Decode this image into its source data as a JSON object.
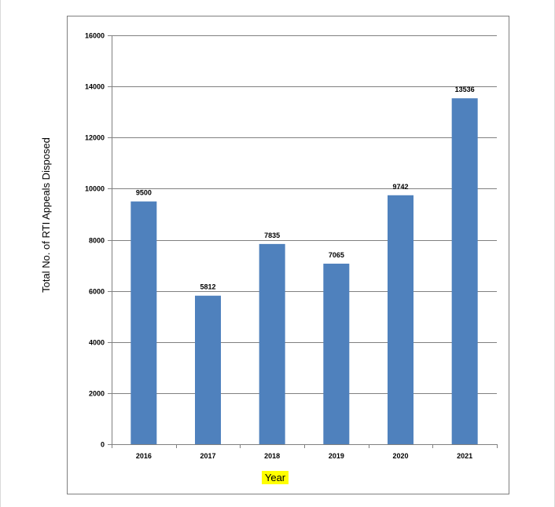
{
  "chart_data": {
    "type": "bar",
    "title": "",
    "xlabel": "Year",
    "ylabel": "Total No. of RTI Appeals Disposed",
    "categories": [
      "2016",
      "2017",
      "2018",
      "2019",
      "2020",
      "2021"
    ],
    "values": [
      9500,
      5812,
      7835,
      7065,
      9742,
      13536
    ],
    "data_labels": [
      "9500",
      "5812",
      "7835",
      "7065",
      "9742",
      "13536"
    ],
    "ylim": [
      0,
      16000
    ],
    "yticks": [
      0,
      2000,
      4000,
      6000,
      8000,
      10000,
      12000,
      14000,
      16000
    ],
    "ytick_labels": [
      "0",
      "2000",
      "4000",
      "6000",
      "8000",
      "10000",
      "12000",
      "14000",
      "16000"
    ],
    "grid": true,
    "legend": "none",
    "colors": {
      "bar": "#4f81bd",
      "gridline": "#808080",
      "axis": "#808080",
      "xlabel_highlight": "#ffff00"
    }
  }
}
